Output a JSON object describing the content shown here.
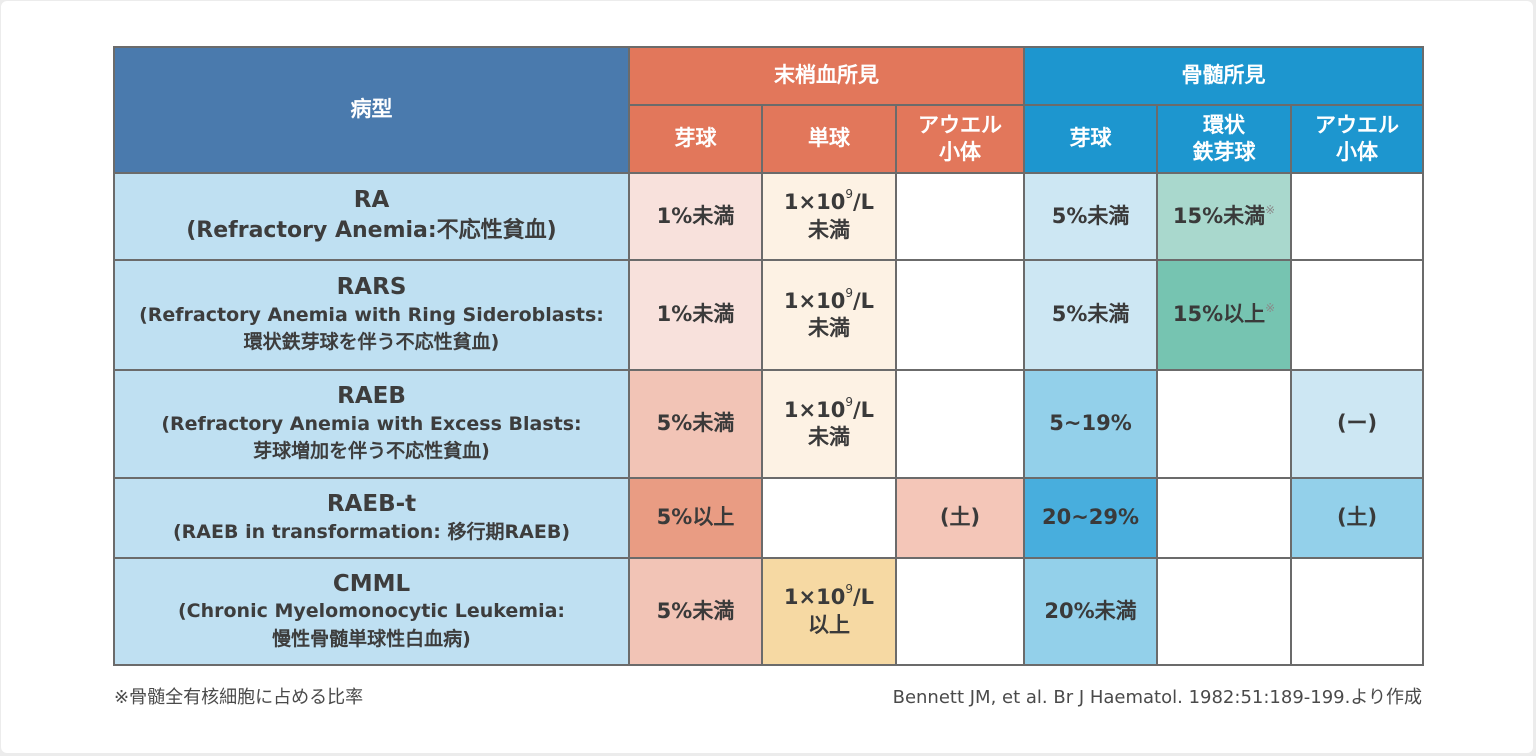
{
  "header": {
    "disease_type": "病型",
    "peripheral_blood": "末梢血所見",
    "bone_marrow": "骨髄所見",
    "pb_blasts": "芽球",
    "pb_monocytes": "単球",
    "pb_auer_line1": "アウエル",
    "pb_auer_line2": "小体",
    "bm_blasts": "芽球",
    "bm_ring_line1": "環状",
    "bm_ring_line2": "鉄芽球",
    "bm_auer_line1": "アウエル",
    "bm_auer_line2": "小体"
  },
  "rows": [
    {
      "abbr": "RA",
      "full1": "(Refractory Anemia:不応性貧血)",
      "full2": "",
      "pb_blasts": "1%未満",
      "pb_mono_1": "1×10",
      "pb_mono_sup": "9",
      "pb_mono_2": "/L",
      "pb_mono_3": "未満",
      "pb_auer": "",
      "bm_blasts": "5%未満",
      "bm_ring": "15%未満",
      "bm_ring_mark": "※",
      "bm_auer": ""
    },
    {
      "abbr": "RARS",
      "full1": "(Refractory Anemia with Ring Sideroblasts:",
      "full2": "環状鉄芽球を伴う不応性貧血)",
      "pb_blasts": "1%未満",
      "pb_mono_1": "1×10",
      "pb_mono_sup": "9",
      "pb_mono_2": "/L",
      "pb_mono_3": "未満",
      "pb_auer": "",
      "bm_blasts": "5%未満",
      "bm_ring": "15%以上",
      "bm_ring_mark": "※",
      "bm_auer": ""
    },
    {
      "abbr": "RAEB",
      "full1": "(Refractory Anemia with Excess Blasts:",
      "full2": "芽球増加を伴う不応性貧血)",
      "pb_blasts": "5%未満",
      "pb_mono_1": "1×10",
      "pb_mono_sup": "9",
      "pb_mono_2": "/L",
      "pb_mono_3": "未満",
      "pb_auer": "",
      "bm_blasts": "5~19%",
      "bm_ring": "",
      "bm_ring_mark": "",
      "bm_auer": "(ー)"
    },
    {
      "abbr": "RAEB-t",
      "full1": "(RAEB in transformation: 移行期RAEB)",
      "full2": "",
      "pb_blasts": "5%以上",
      "pb_auer": "(土)",
      "bm_blasts": "20~29%",
      "bm_ring": "",
      "bm_auer": "(土)"
    },
    {
      "abbr": "CMML",
      "full1": "(Chronic Myelomonocytic Leukemia:",
      "full2": "慢性骨髄単球性白血病)",
      "pb_blasts": "5%未満",
      "pb_mono_1": "1×10",
      "pb_mono_sup": "9",
      "pb_mono_2": "/L",
      "pb_mono_3": "以上",
      "pb_auer": "",
      "bm_blasts": "20%未満",
      "bm_ring": "",
      "bm_auer": ""
    }
  ],
  "footer": {
    "note": "※骨髄全有核細胞に占める比率",
    "source": "Bennett JM, et al. Br J Haematol. 1982:51:189-199.より作成"
  }
}
